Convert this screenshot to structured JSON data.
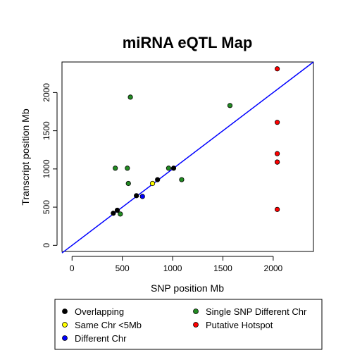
{
  "chart_data": {
    "type": "scatter",
    "title": "miRNA eQTL Map",
    "xlabel": "SNP position Mb",
    "ylabel": "Transcript position Mb",
    "xlim": [
      -100,
      2400
    ],
    "ylim": [
      -80,
      2400
    ],
    "xticks": [
      0,
      500,
      1000,
      1500,
      2000
    ],
    "yticks": [
      0,
      500,
      1000,
      1500,
      2000
    ],
    "grid": false,
    "reference_line": {
      "from": [
        -100,
        -100
      ],
      "to": [
        2400,
        2400
      ],
      "color": "#0000ff"
    },
    "legend_position": "bottom",
    "series": [
      {
        "name": "Overlapping",
        "color": "#000000",
        "points": [
          [
            410,
            420
          ],
          [
            450,
            460
          ],
          [
            640,
            650
          ],
          [
            850,
            860
          ],
          [
            1010,
            1010
          ],
          [
            2040,
            1090
          ]
        ]
      },
      {
        "name": "Same Chr <5Mb",
        "color": "#ffff00",
        "points": [
          [
            800,
            810
          ]
        ]
      },
      {
        "name": "Different Chr",
        "color": "#0000ff",
        "points": [
          [
            700,
            640
          ]
        ]
      },
      {
        "name": "Single SNP Different Chr",
        "color": "#228b22",
        "points": [
          [
            580,
            1940
          ],
          [
            1570,
            1830
          ],
          [
            430,
            1010
          ],
          [
            550,
            1010
          ],
          [
            960,
            1010
          ],
          [
            560,
            810
          ],
          [
            1090,
            860
          ],
          [
            480,
            410
          ]
        ]
      },
      {
        "name": "Putative Hotspot",
        "color": "#ff0000",
        "points": [
          [
            2040,
            2310
          ],
          [
            2040,
            1610
          ],
          [
            2040,
            1200
          ],
          [
            2040,
            1090
          ],
          [
            2040,
            470
          ]
        ]
      }
    ]
  }
}
